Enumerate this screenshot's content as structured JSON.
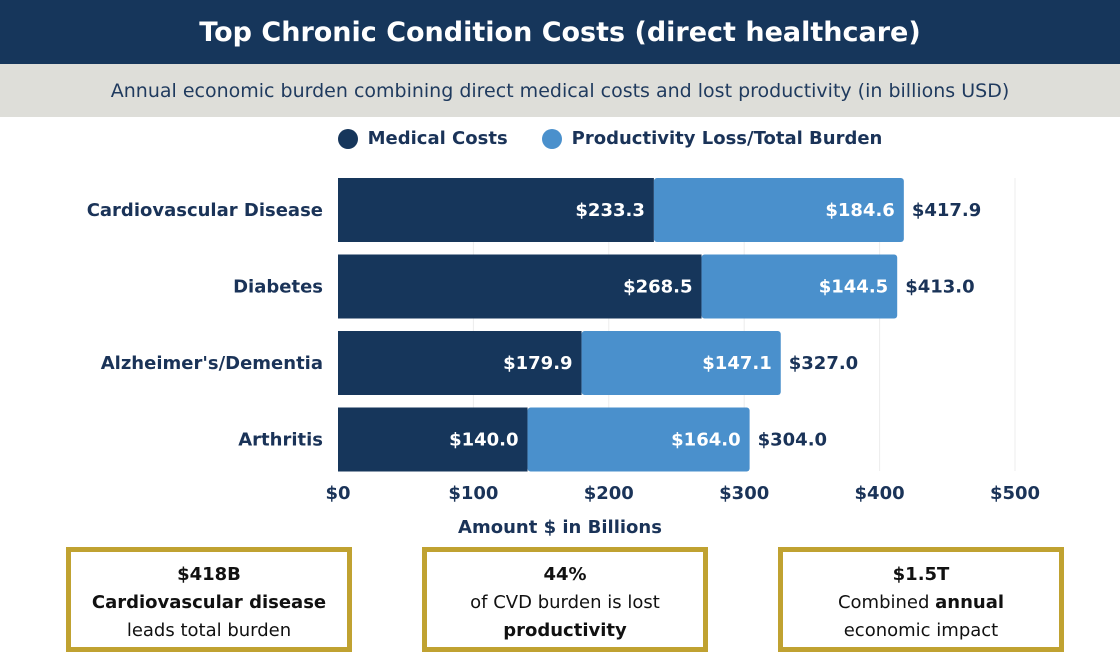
{
  "header": {
    "title": "Top Chronic Condition Costs (direct healthcare)",
    "subtitle": "Annual economic burden combining direct medical costs and lost productivity (in billions USD)"
  },
  "colors": {
    "medical": "#16365b",
    "productivity": "#4a90cc",
    "header_bg": "#16365b",
    "subtitle_bg": "#deded9",
    "callout_border": "#c0a231"
  },
  "chart_data": {
    "type": "bar",
    "orientation": "horizontal",
    "stacked": true,
    "categories": [
      "Cardiovascular Disease",
      "Diabetes",
      "Alzheimer's/Dementia",
      "Arthritis"
    ],
    "series": [
      {
        "name": "Medical Costs",
        "values": [
          233.3,
          268.5,
          179.9,
          140.0
        ],
        "labels": [
          "$233.3",
          "$268.5",
          "$179.9",
          "$140.0"
        ]
      },
      {
        "name": "Productivity Loss/Total Burden",
        "values": [
          184.6,
          144.5,
          147.1,
          164.0
        ],
        "labels": [
          "$184.6",
          "$144.5",
          "$147.1",
          "$164.0"
        ]
      }
    ],
    "totals": [
      417.9,
      413.0,
      327.0,
      304.0
    ],
    "total_labels": [
      "$417.9",
      "$413.0",
      "$327.0",
      "$304.0"
    ],
    "xlabel": "Amount $ in Billions",
    "xlim": [
      0,
      500
    ],
    "xticks": [
      0,
      100,
      200,
      300,
      400,
      500
    ],
    "xtick_labels": [
      "$0",
      "$100",
      "$200",
      "$300",
      "$400",
      "$500"
    ],
    "grid": true,
    "legend": "top"
  },
  "callouts": [
    {
      "value": "$418B",
      "line2": "Cardiovascular disease",
      "line3": "leads total burden"
    },
    {
      "value": "44%",
      "line2": "of CVD burden is lost",
      "line3": "productivity"
    },
    {
      "value": "$1.5T",
      "line2_pre": "Combined ",
      "line2_bold": "annual",
      "line3": "economic impact"
    }
  ]
}
